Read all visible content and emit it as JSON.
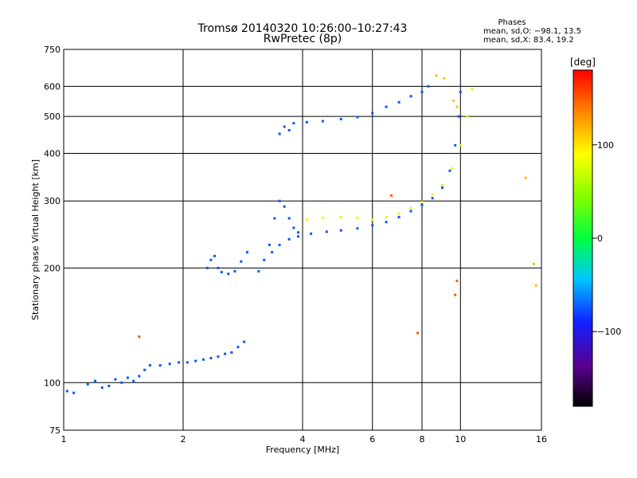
{
  "chart_data": {
    "type": "scatter",
    "title": "Tromsø 20140320 10:26:00–10:27:43",
    "subtitle": "RwPretec (8p)",
    "stats": {
      "header": "Phases",
      "line_o": "mean, sd,O: −98.1, 13.5",
      "line_x": "mean, sd,X:  83.4, 19.2"
    },
    "xlabel": "Frequency [MHz]",
    "ylabel": "Stationary phase Virtual Height [km]",
    "x_scale": "log",
    "y_scale": "log",
    "xlim": [
      1,
      16
    ],
    "ylim": [
      75,
      750
    ],
    "x_ticks": [
      1,
      2,
      4,
      6,
      8,
      10,
      16
    ],
    "x_tick_labels": [
      "1",
      "2",
      "4",
      "6",
      "8",
      "10",
      "16"
    ],
    "y_ticks": [
      75,
      100,
      200,
      300,
      400,
      500,
      600,
      750
    ],
    "y_tick_labels": [
      "75",
      "100",
      "200",
      "300",
      "400",
      "500",
      "600",
      "750"
    ],
    "grid": true,
    "colorbar": {
      "label": "[deg]",
      "range": [
        -180,
        180
      ],
      "ticks": [
        100,
        0,
        -100
      ],
      "tick_labels": [
        "100",
        "0",
        "−100"
      ]
    },
    "series": [
      {
        "phase": -100,
        "points": [
          [
            1.02,
            95
          ],
          [
            1.06,
            94
          ],
          [
            1.15,
            99
          ],
          [
            1.2,
            101
          ],
          [
            1.25,
            97
          ],
          [
            1.3,
            98
          ],
          [
            1.35,
            102
          ],
          [
            1.4,
            100
          ],
          [
            1.45,
            103
          ],
          [
            1.5,
            101
          ],
          [
            1.55,
            104
          ],
          [
            1.6,
            108
          ],
          [
            1.65,
            111
          ]
        ]
      },
      {
        "phase": -100,
        "points": [
          [
            1.75,
            111
          ],
          [
            1.85,
            112
          ],
          [
            1.95,
            113
          ],
          [
            2.05,
            113
          ],
          [
            2.15,
            114
          ],
          [
            2.25,
            115
          ],
          [
            2.35,
            116
          ],
          [
            2.45,
            117
          ],
          [
            2.55,
            119
          ],
          [
            2.65,
            120
          ],
          [
            2.75,
            124
          ],
          [
            2.85,
            128
          ]
        ]
      },
      {
        "phase": -100,
        "points": [
          [
            2.3,
            200
          ],
          [
            2.35,
            210
          ],
          [
            2.4,
            215
          ],
          [
            2.45,
            200
          ],
          [
            2.5,
            195
          ],
          [
            2.6,
            193
          ],
          [
            2.7,
            196
          ],
          [
            2.8,
            208
          ],
          [
            2.9,
            220
          ]
        ]
      },
      {
        "phase": -100,
        "points": [
          [
            3.1,
            196
          ],
          [
            3.2,
            210
          ],
          [
            3.3,
            230
          ],
          [
            3.4,
            270
          ],
          [
            3.5,
            300
          ],
          [
            3.6,
            290
          ],
          [
            3.7,
            270
          ],
          [
            3.8,
            255
          ],
          [
            3.9,
            248
          ]
        ]
      },
      {
        "phase": -100,
        "points": [
          [
            3.35,
            220
          ],
          [
            3.5,
            230
          ],
          [
            3.7,
            238
          ],
          [
            3.9,
            242
          ],
          [
            4.2,
            246
          ],
          [
            4.6,
            249
          ],
          [
            5,
            251
          ],
          [
            5.5,
            254
          ],
          [
            6,
            259
          ],
          [
            6.5,
            264
          ],
          [
            7,
            272
          ],
          [
            7.5,
            282
          ],
          [
            8,
            293
          ],
          [
            8.5,
            305
          ],
          [
            9,
            325
          ],
          [
            9.4,
            360
          ],
          [
            9.7,
            420
          ],
          [
            9.9,
            500
          ],
          [
            10,
            580
          ]
        ]
      },
      {
        "phase": -100,
        "points": [
          [
            3.5,
            450
          ],
          [
            3.6,
            470
          ],
          [
            3.7,
            460
          ],
          [
            3.8,
            480
          ],
          [
            4.1,
            483
          ],
          [
            4.5,
            486
          ],
          [
            5,
            492
          ],
          [
            5.5,
            498
          ],
          [
            6,
            510
          ],
          [
            6.5,
            530
          ],
          [
            7,
            545
          ],
          [
            7.5,
            565
          ],
          [
            8,
            580
          ],
          [
            8.3,
            600
          ]
        ]
      },
      {
        "phase": 100,
        "points": [
          [
            4.1,
            268
          ],
          [
            4.5,
            271
          ],
          [
            5,
            272
          ],
          [
            5.5,
            271
          ],
          [
            6,
            268
          ],
          [
            6.5,
            272
          ],
          [
            7,
            278
          ],
          [
            7.5,
            287
          ],
          [
            8,
            298
          ],
          [
            8.5,
            312
          ],
          [
            9,
            330
          ],
          [
            9.5,
            365
          ],
          [
            10,
            420
          ],
          [
            10.4,
            500
          ],
          [
            10.7,
            590
          ]
        ]
      },
      {
        "phase": 120,
        "points": [
          [
            8.7,
            640
          ],
          [
            9.1,
            630
          ],
          [
            9.6,
            550
          ],
          [
            9.8,
            530
          ],
          [
            15.3,
            205
          ],
          [
            15.5,
            180
          ],
          [
            14.6,
            345
          ]
        ]
      },
      {
        "phase": 150,
        "points": [
          [
            6.7,
            310
          ],
          [
            7.8,
            135
          ],
          [
            9.7,
            170
          ],
          [
            9.8,
            185
          ],
          [
            1.55,
            132
          ]
        ]
      }
    ]
  }
}
